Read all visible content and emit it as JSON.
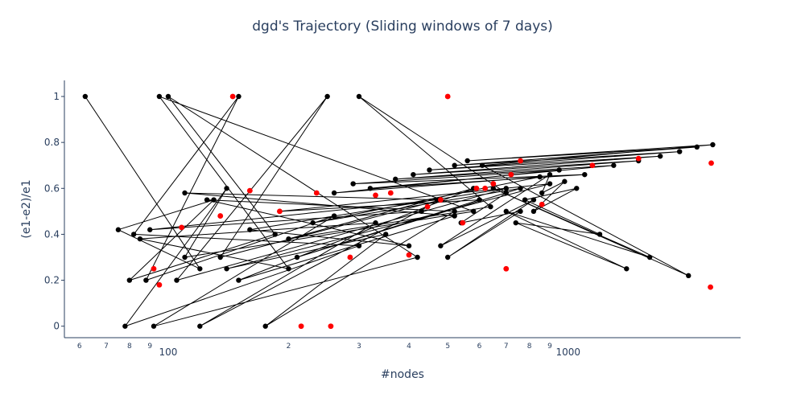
{
  "chart_data": {
    "type": "scatter",
    "title": "dgd's Trajectory (Sliding windows of 7 days)",
    "xlabel": "#nodes",
    "ylabel": "(e1-e2)/e1",
    "x_scale": "log",
    "xlim": [
      55,
      2700
    ],
    "ylim": [
      -0.05,
      1.07
    ],
    "y_ticks": [
      0,
      0.2,
      0.4,
      0.6,
      0.8,
      1
    ],
    "y_tick_labels": [
      "0",
      "0.2",
      "0.4",
      "0.6",
      "0.8",
      "1"
    ],
    "x_major_ticks": [
      100,
      1000
    ],
    "x_major_labels": [
      "100",
      "1000"
    ],
    "x_minor_ticks": [
      60,
      70,
      80,
      90,
      200,
      300,
      400,
      500,
      600,
      700,
      800,
      900
    ],
    "x_minor_labels": [
      "6",
      "7",
      "8",
      "9",
      "2",
      "3",
      "4",
      "5",
      "6",
      "7",
      "8",
      "9"
    ],
    "grid": false,
    "legend": "none",
    "line_color": "#000000",
    "marker_color": "#000000",
    "highlight_color": "#ff0000",
    "series": [
      {
        "mode": "lines+markers",
        "x": [
          62,
          120,
          75,
          130,
          80,
          185,
          100,
          420,
          92,
          260,
          88,
          150,
          82,
          300,
          78,
          140,
          110,
          580,
          95,
          200,
          85,
          330,
          120,
          480,
          135,
          250,
          105,
          700,
          160,
          400,
          125,
          520,
          175,
          350,
          140,
          900,
          190,
          600,
          210,
          760,
          230,
          850,
          260,
          950,
          290,
          1100,
          320,
          1300,
          370,
          1500,
          410,
          1700,
          450,
          1900,
          520,
          2100,
          560,
          2300,
          610,
          2000,
          650,
          1600,
          700,
          1400,
          740,
          1200,
          780,
          1050,
          820,
          980,
          860,
          900,
          480,
          820,
          500,
          760,
          540,
          700,
          300,
          640,
          200,
          580,
          150,
          520,
          110,
          470,
          90,
          430
        ],
        "y": [
          1.0,
          0.25,
          0.42,
          0.55,
          0.2,
          0.4,
          1.0,
          0.3,
          0.0,
          0.48,
          0.2,
          1.0,
          0.4,
          0.35,
          0.0,
          0.6,
          0.3,
          0.5,
          1.0,
          0.25,
          0.38,
          0.45,
          0.0,
          0.55,
          0.3,
          1.0,
          0.2,
          0.6,
          0.42,
          0.35,
          0.55,
          0.5,
          0.0,
          0.4,
          0.25,
          0.62,
          0.5,
          0.55,
          0.3,
          0.6,
          0.45,
          0.65,
          0.58,
          0.68,
          0.62,
          0.66,
          0.6,
          0.7,
          0.64,
          0.72,
          0.66,
          0.74,
          0.68,
          0.76,
          0.7,
          0.78,
          0.72,
          0.79,
          0.7,
          0.22,
          0.6,
          0.3,
          0.5,
          0.25,
          0.45,
          0.4,
          0.55,
          0.6,
          0.5,
          0.63,
          0.58,
          0.66,
          0.35,
          0.55,
          0.3,
          0.5,
          0.45,
          0.58,
          1.0,
          0.52,
          0.38,
          0.6,
          0.2,
          0.48,
          0.58,
          0.55,
          0.42,
          0.5
        ]
      }
    ],
    "highlighted_points": {
      "x": [
        108,
        92,
        95,
        145,
        160,
        135,
        190,
        215,
        235,
        255,
        285,
        330,
        360,
        400,
        445,
        480,
        500,
        545,
        590,
        620,
        650,
        700,
        720,
        760,
        860,
        1150,
        1500,
        2280,
        2270
      ],
      "y": [
        0.43,
        0.25,
        0.18,
        1.0,
        0.59,
        0.48,
        0.5,
        0.0,
        0.58,
        0.0,
        0.3,
        0.57,
        0.58,
        0.31,
        0.52,
        0.55,
        1.0,
        0.45,
        0.6,
        0.6,
        0.62,
        0.25,
        0.66,
        0.72,
        0.53,
        0.7,
        0.73,
        0.71,
        0.17
      ]
    }
  }
}
